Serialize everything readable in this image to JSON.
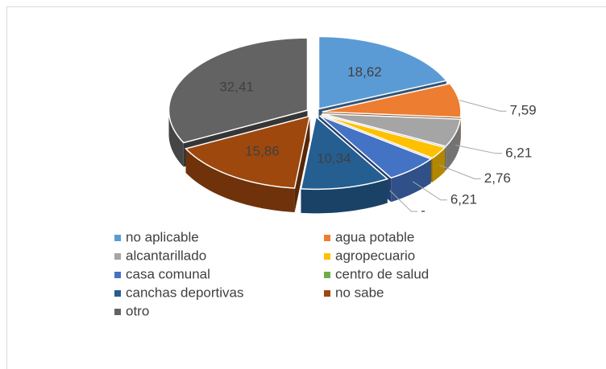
{
  "chart_data": {
    "type": "pie3d",
    "categories": [
      "no aplicable",
      "agua potable",
      "alcantarillado",
      "agropecuario",
      "casa comunal",
      "centro de salud",
      "canchas deportivas",
      "no sabe",
      "otro"
    ],
    "values": [
      18.62,
      7.59,
      6.21,
      2.76,
      6.21,
      0,
      10.34,
      15.86,
      32.41
    ],
    "value_labels": [
      "18,62",
      "7,59",
      "6,21",
      "2,76",
      "6,21",
      "-",
      "10,34",
      "15,86",
      "32,41"
    ],
    "colors": [
      "#5b9bd5",
      "#ed7d31",
      "#a5a5a5",
      "#ffc000",
      "#4472c4",
      "#70ad47",
      "#255e91",
      "#9e480e",
      "#636363"
    ],
    "legend": "bottom"
  }
}
